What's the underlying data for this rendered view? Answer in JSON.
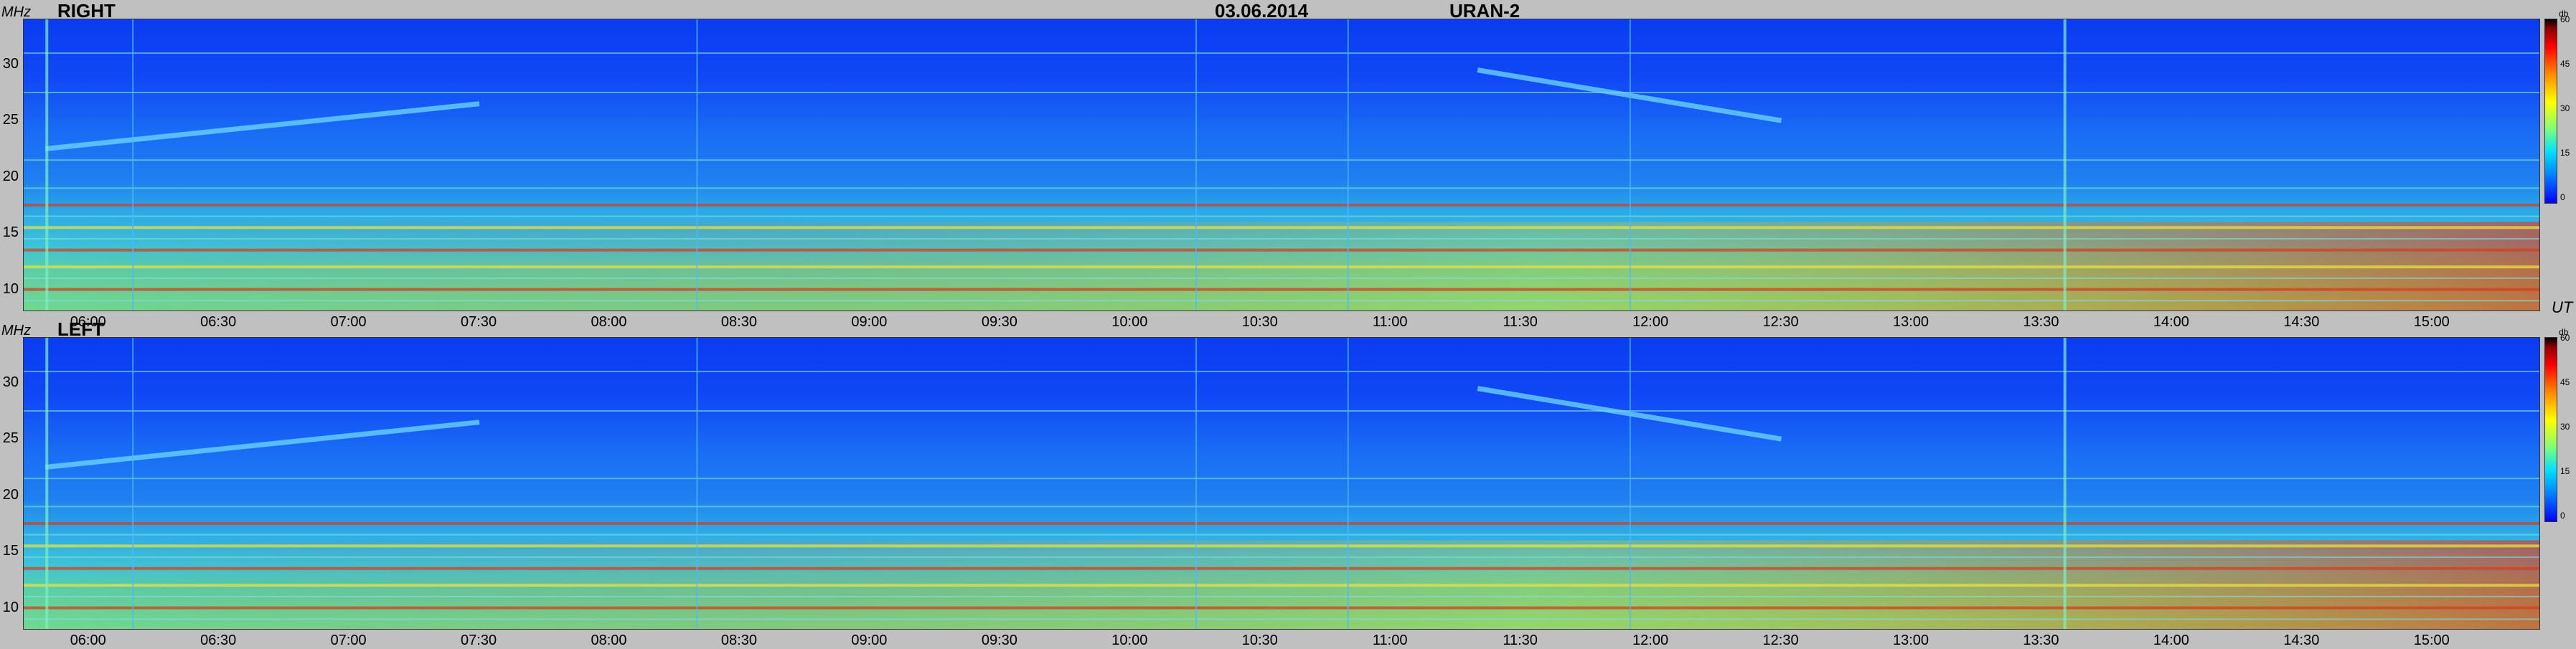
{
  "header": {
    "date": "03.06.2014",
    "instrument": "URAN-2"
  },
  "panels": [
    {
      "label": "RIGHT"
    },
    {
      "label": "LEFT"
    }
  ],
  "axes": {
    "y_unit": "MHz",
    "x_unit": "UT",
    "y_ticks": [
      "30",
      "25",
      "20",
      "15",
      "10"
    ],
    "x_ticks": [
      "06:00",
      "06:30",
      "07:00",
      "07:30",
      "08:00",
      "08:30",
      "09:00",
      "09:30",
      "10:00",
      "10:30",
      "11:00",
      "11:30",
      "12:00",
      "12:30",
      "13:00",
      "13:30",
      "14:00",
      "14:30",
      "15:00"
    ],
    "colorbar_unit": "db",
    "colorbar_ticks": [
      "60",
      "45",
      "30",
      "15",
      "0"
    ]
  },
  "chart_data": [
    {
      "type": "heatmap",
      "title": "RIGHT",
      "xlabel": "UT",
      "ylabel": "MHz",
      "y_range_mhz": [
        8,
        34
      ],
      "x_range_ut": [
        "05:45",
        "15:25"
      ],
      "colorbar_range_db": [
        0,
        60
      ],
      "strong_horizontal_bands_mhz": [
        17.5,
        15.5,
        13.5,
        12,
        10
      ],
      "drifting_features": [
        {
          "start_ut": "05:50",
          "start_mhz": 22.5,
          "end_ut": "07:30",
          "end_mhz": 26.5
        },
        {
          "start_ut": "11:20",
          "start_mhz": 29.5,
          "end_ut": "12:30",
          "end_mhz": 25
        }
      ]
    },
    {
      "type": "heatmap",
      "title": "LEFT",
      "xlabel": "UT",
      "ylabel": "MHz",
      "y_range_mhz": [
        8,
        34
      ],
      "x_range_ut": [
        "05:45",
        "15:25"
      ],
      "colorbar_range_db": [
        0,
        60
      ],
      "strong_horizontal_bands_mhz": [
        17.5,
        15.5,
        13.5,
        12,
        10
      ],
      "drifting_features": [
        {
          "start_ut": "05:50",
          "start_mhz": 22.5,
          "end_ut": "07:30",
          "end_mhz": 26.5
        },
        {
          "start_ut": "11:20",
          "start_mhz": 29.5,
          "end_ut": "12:30",
          "end_mhz": 25
        }
      ]
    }
  ]
}
